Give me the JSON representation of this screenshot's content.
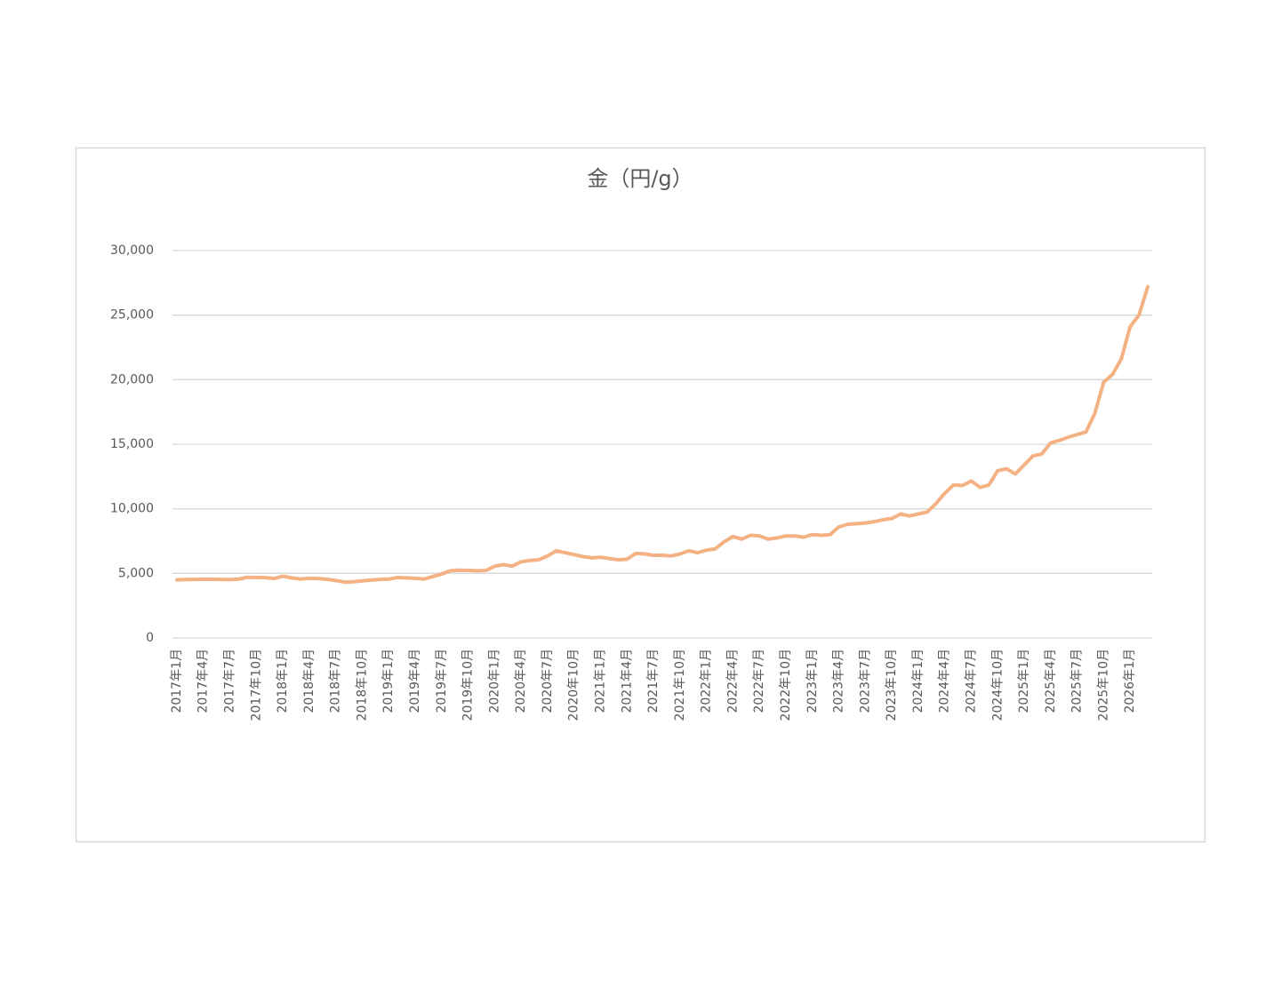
{
  "chart_data": {
    "type": "line",
    "title": "金（円/g）",
    "categories": [
      "2017年1月",
      null,
      null,
      "2017年4月",
      null,
      null,
      "2017年7月",
      null,
      null,
      "2017年10月",
      null,
      null,
      "2018年1月",
      null,
      null,
      "2018年4月",
      null,
      null,
      "2018年7月",
      null,
      null,
      "2018年10月",
      null,
      null,
      "2019年1月",
      null,
      null,
      "2019年4月",
      null,
      null,
      "2019年7月",
      null,
      null,
      "2019年10月",
      null,
      null,
      "2020年1月",
      null,
      null,
      "2020年4月",
      null,
      null,
      "2020年7月",
      null,
      null,
      "2020年10月",
      null,
      null,
      "2021年1月",
      null,
      null,
      "2021年4月",
      null,
      null,
      "2021年7月",
      null,
      null,
      "2021年10月",
      null,
      null,
      "2022年1月",
      null,
      null,
      "2022年4月",
      null,
      null,
      "2022年7月",
      null,
      null,
      "2022年10月",
      null,
      null,
      "2023年1月",
      null,
      null,
      "2023年4月",
      null,
      null,
      "2023年7月",
      null,
      null,
      "2023年10月",
      null,
      null,
      "2024年1月",
      null,
      null,
      "2024年4月",
      null,
      null,
      "2024年7月",
      null,
      null,
      "2024年10月",
      null,
      null,
      "2025年1月",
      null,
      null,
      "2025年4月",
      null,
      null,
      "2025年7月",
      null,
      null,
      "2025年10月",
      null,
      null,
      "2026年1月",
      null,
      null
    ],
    "series": [
      {
        "name": "金（円/g）",
        "color": "#f4b183",
        "values": [
          4500,
          4520,
          4530,
          4540,
          4540,
          4530,
          4520,
          4560,
          4700,
          4680,
          4670,
          4600,
          4780,
          4650,
          4560,
          4620,
          4600,
          4540,
          4450,
          4320,
          4350,
          4420,
          4480,
          4530,
          4560,
          4680,
          4650,
          4620,
          4560,
          4750,
          4950,
          5200,
          5250,
          5230,
          5200,
          5220,
          5550,
          5680,
          5560,
          5900,
          6000,
          6050,
          6350,
          6750,
          6600,
          6450,
          6300,
          6200,
          6250,
          6150,
          6050,
          6100,
          6550,
          6500,
          6400,
          6400,
          6350,
          6500,
          6750,
          6600,
          6800,
          6900,
          7450,
          7850,
          7650,
          7950,
          7900,
          7650,
          7750,
          7900,
          7900,
          7800,
          8000,
          7950,
          8000,
          8600,
          8800,
          8850,
          8900,
          9000,
          9150,
          9250,
          9600,
          9450,
          9600,
          9750,
          10400,
          11200,
          11850,
          11800,
          12150,
          11650,
          11850,
          12950,
          13100,
          12700,
          13400,
          14100,
          14250,
          15100,
          15300,
          15550,
          15750,
          15950,
          17400,
          19800,
          20400,
          21600,
          24100,
          25000,
          27200
        ]
      }
    ],
    "ylim": [
      0,
      30000
    ],
    "yticks": [
      0,
      {
        "value": 5000,
        "label": "5,000"
      },
      {
        "value": 10000,
        "label": "10,000"
      },
      {
        "value": 15000,
        "label": "15,000"
      },
      {
        "value": 20000,
        "label": "20,000"
      },
      {
        "value": 25000,
        "label": "25,000"
      },
      {
        "value": 30000,
        "label": "30,000"
      }
    ],
    "grid": true
  }
}
